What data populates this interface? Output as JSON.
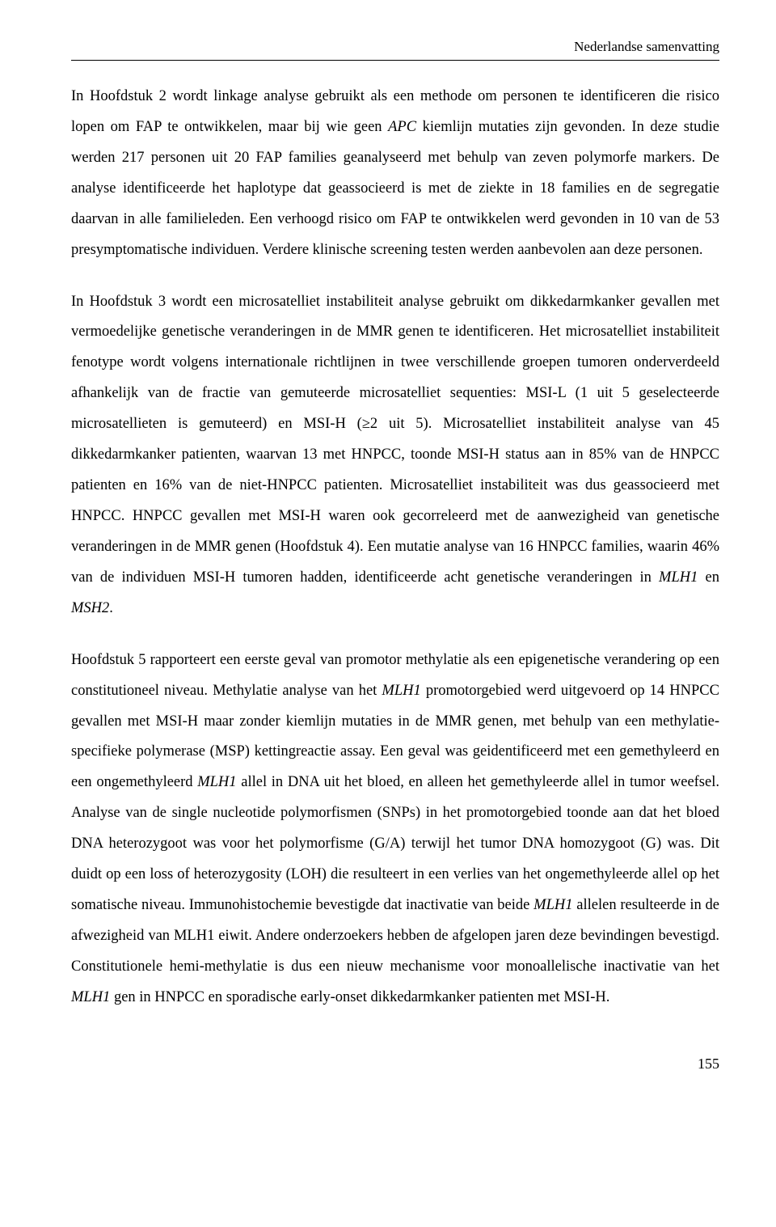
{
  "header": {
    "running_title": "Nederlandse samenvatting"
  },
  "paragraphs": {
    "p1": {
      "s1a": "In Hoofdstuk 2 wordt linkage analyse gebruikt als een methode om personen te identificeren die risico lopen om FAP te ontwikkelen, maar bij wie geen ",
      "s1b": "APC",
      "s1c": " kiemlijn mutaties zijn gevonden. In deze studie werden 217 personen uit 20 FAP families geanalyseerd met behulp van zeven polymorfe markers. De analyse identificeerde het haplotype dat geassocieerd is met de ziekte in 18 families en de segregatie daarvan in alle familieleden. Een verhoogd risico om FAP te ontwikkelen werd gevonden in 10 van de 53 presymptomatische individuen. Verdere klinische screening testen werden aanbevolen aan deze personen."
    },
    "p2": {
      "s1": "In Hoofdstuk 3 wordt een microsatelliet instabiliteit analyse gebruikt om dikkedarmkanker gevallen met vermoedelijke genetische veranderingen in de MMR genen te identificeren. Het microsatelliet instabiliteit fenotype wordt volgens internationale richtlijnen in twee verschillende groepen tumoren onderverdeeld afhankelijk van de fractie van gemuteerde microsatelliet sequenties: MSI-L (1 uit 5 geselecteerde microsatellieten is gemuteerd) en MSI-H (≥2 uit 5). Microsatelliet instabiliteit analyse van 45 dikkedarmkanker patienten, waarvan 13 met HNPCC, toonde MSI-H status aan in 85% van de HNPCC patienten en 16% van de niet-HNPCC patienten. Microsatelliet instabiliteit was dus geassocieerd met HNPCC. HNPCC gevallen met MSI-H waren ook gecorreleerd met de aanwezigheid van genetische veranderingen in de MMR genen (Hoofdstuk 4). Een mutatie analyse van 16 HNPCC families, waarin 46% van de individuen MSI-H tumoren hadden, identificeerde acht genetische veranderingen in ",
      "s2": "MLH1",
      "s3": " en ",
      "s4": "MSH2",
      "s5": "."
    },
    "p3": {
      "s1": "Hoofdstuk 5 rapporteert een eerste geval van promotor methylatie als een epigenetische verandering op een constitutioneel niveau. Methylatie analyse van het ",
      "s2": "MLH1",
      "s3": " promotorgebied werd uitgevoerd op 14 HNPCC gevallen met MSI-H maar zonder kiemlijn mutaties in de MMR genen, met behulp van een methylatie-specifieke polymerase (MSP) kettingreactie assay. Een geval was geidentificeerd met een gemethyleerd en een ongemethyleerd ",
      "s4": "MLH1",
      "s5": " allel in DNA uit het bloed, en alleen het gemethyleerde allel in tumor weefsel. Analyse van de single nucleotide polymorfismen (SNPs) in het promotorgebied toonde aan dat het bloed DNA heterozygoot was voor het polymorfisme (G/A) terwijl het tumor DNA homozygoot (G) was. Dit duidt op een loss of heterozygosity (LOH) die resulteert in een verlies van het ongemethyleerde allel op het somatische niveau. Immunohistochemie bevestigde dat inactivatie van beide ",
      "s6": "MLH1",
      "s7": " allelen resulteerde in de afwezigheid van MLH1 eiwit. Andere onderzoekers hebben de afgelopen jaren deze bevindingen bevestigd. Constitutionele hemi-methylatie is dus een nieuw mechanisme voor monoallelische inactivatie van het ",
      "s8": "MLH1",
      "s9": " gen in HNPCC en sporadische early-onset dikkedarmkanker patienten met MSI-H."
    }
  },
  "footer": {
    "page_number": "155"
  }
}
